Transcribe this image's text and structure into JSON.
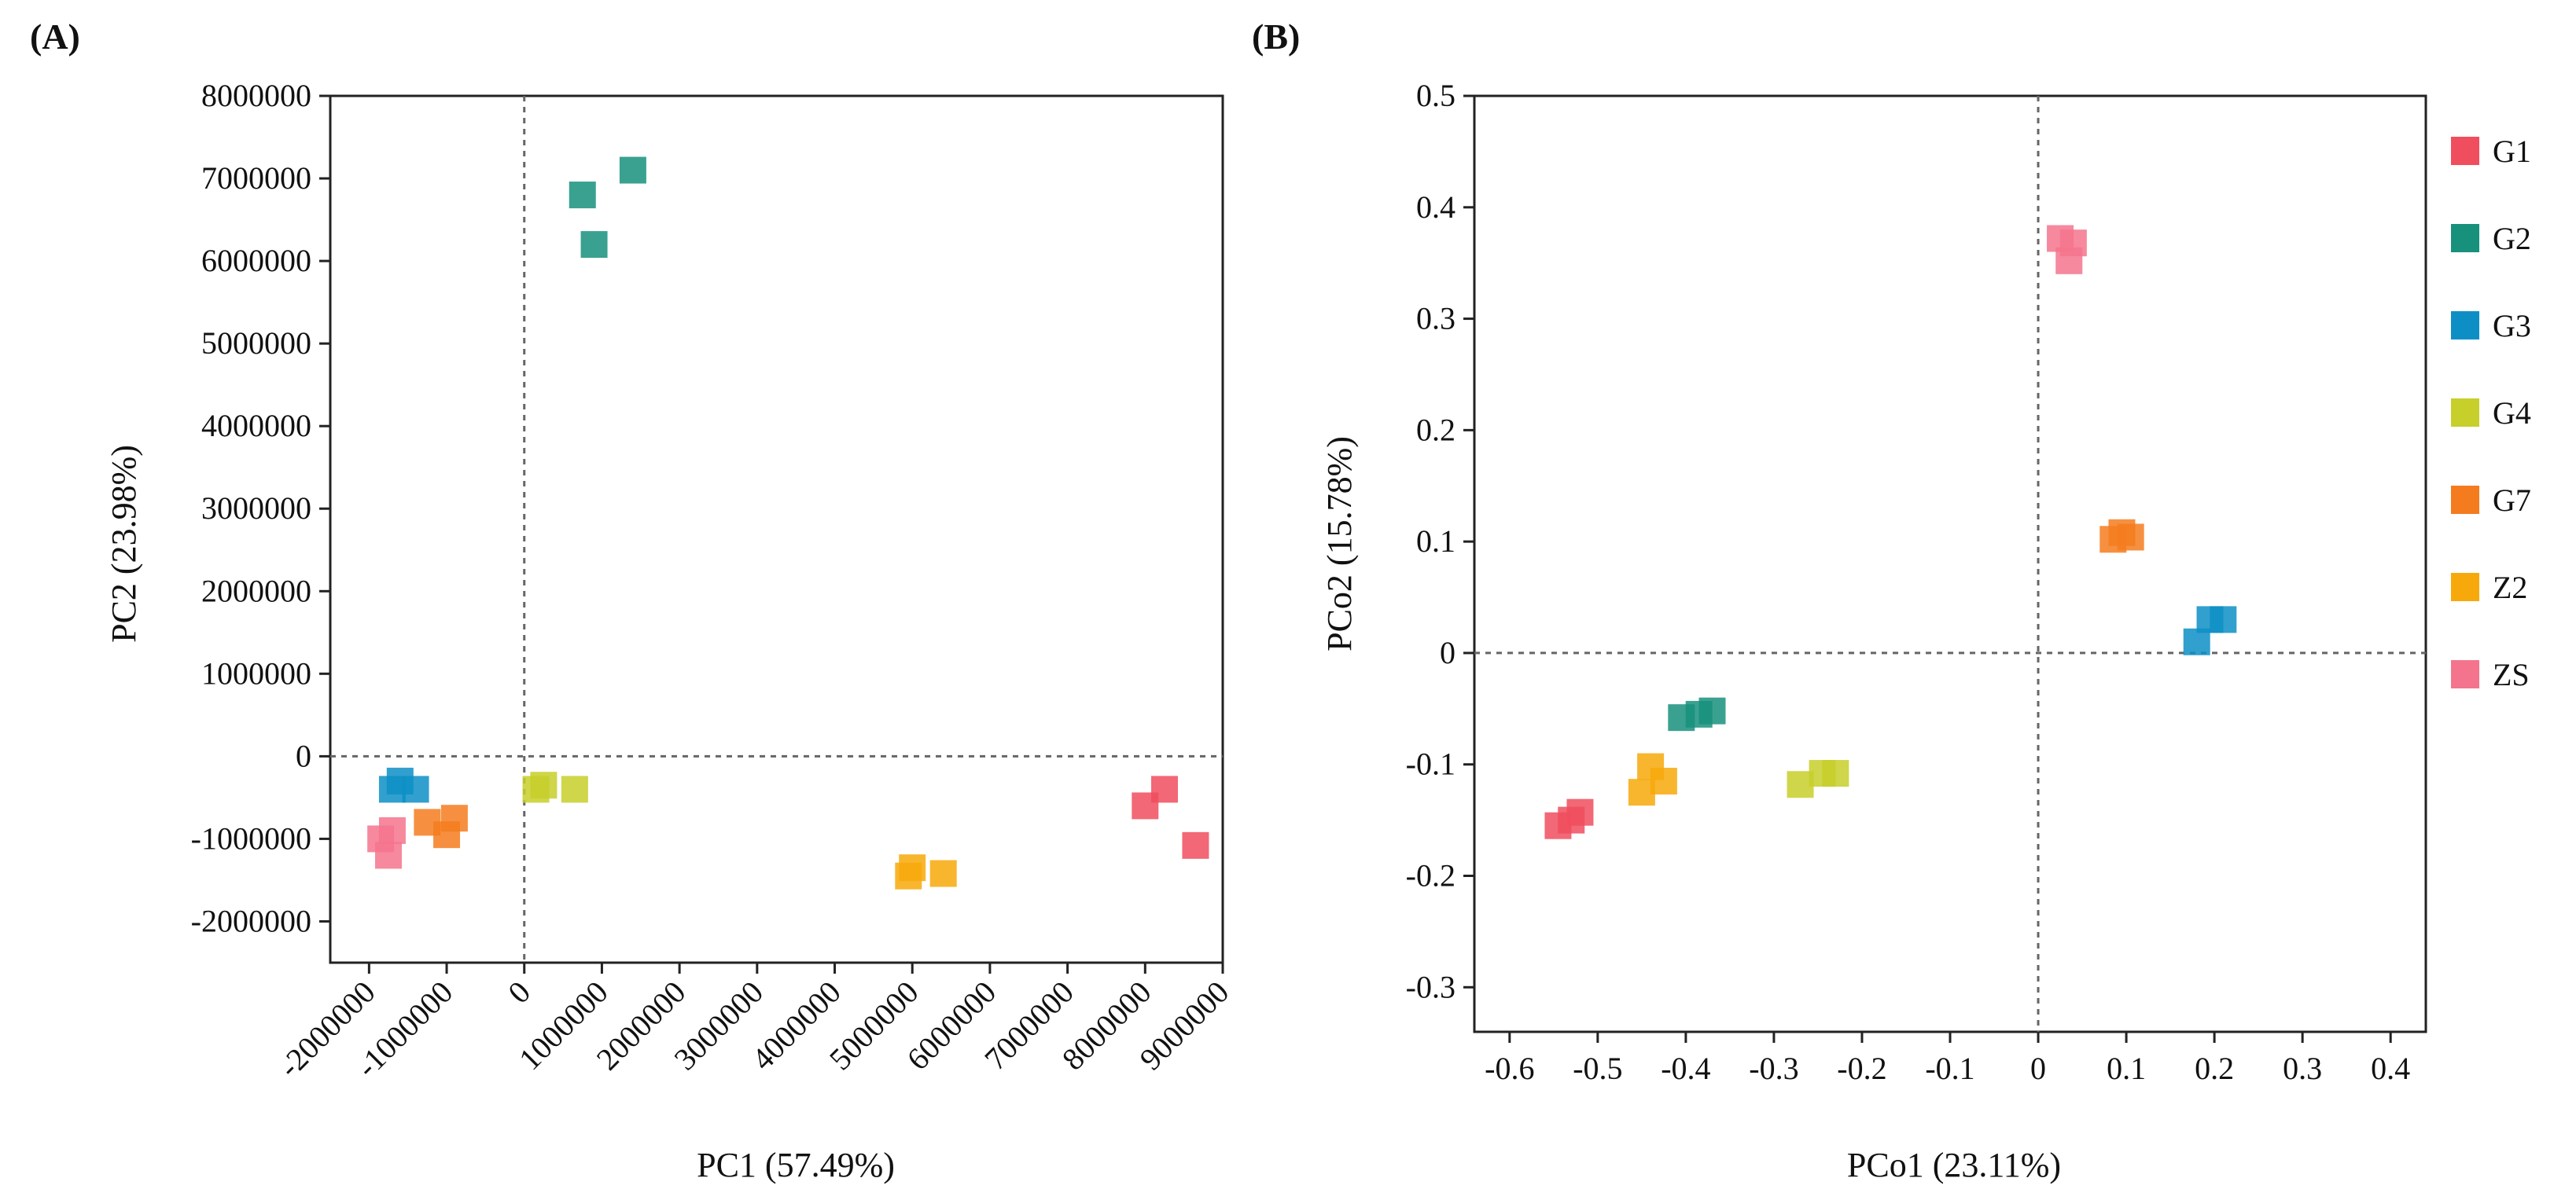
{
  "charts": [
    {
      "panel_label": "(A)",
      "title": "",
      "xlabel": "PC1 (57.49%)",
      "ylabel": "PC2 (23.98%)"
    },
    {
      "panel_label": "(B)",
      "title": "",
      "xlabel": "PCo1 (23.11%)",
      "ylabel": "PCo2 (15.78%)"
    }
  ],
  "legend": {
    "entries": [
      {
        "label": "G1",
        "color": "#f04e5e"
      },
      {
        "label": "G2",
        "color": "#17917c"
      },
      {
        "label": "G3",
        "color": "#0d8fc6"
      },
      {
        "label": "G4",
        "color": "#c7cf2a"
      },
      {
        "label": "G7",
        "color": "#f47c1e"
      },
      {
        "label": "Z2",
        "color": "#f7a90b"
      },
      {
        "label": "ZS",
        "color": "#f4748d"
      }
    ]
  },
  "chart_data": [
    {
      "type": "scatter",
      "title": "",
      "panel": "(A)",
      "xlabel": "PC1 (57.49%)",
      "ylabel": "PC2 (23.98%)",
      "xlim": [
        -2500000,
        9000000
      ],
      "ylim": [
        -2500000,
        8000000
      ],
      "xticks": [
        -2000000,
        -1000000,
        0,
        1000000,
        2000000,
        3000000,
        4000000,
        5000000,
        6000000,
        7000000,
        8000000,
        9000000
      ],
      "xtick_labels": [
        "-2000000",
        "-1000000",
        "0",
        "1000000",
        "2000000",
        "3000000",
        "4000000",
        "5000000",
        "6000000",
        "7000000",
        "8000000",
        "9000000"
      ],
      "yticks": [
        -2000000,
        -1000000,
        0,
        1000000,
        2000000,
        3000000,
        4000000,
        5000000,
        6000000,
        7000000,
        8000000
      ],
      "ytick_labels": [
        "-2000000",
        "-1000000",
        "0",
        "1000000",
        "2000000",
        "3000000",
        "4000000",
        "5000000",
        "6000000",
        "7000000",
        "8000000"
      ],
      "reference_lines": {
        "x": 0,
        "y": 0
      },
      "series": [
        {
          "name": "G1",
          "color": "#f04e5e",
          "x": [
            8000000,
            8250000,
            8650000
          ],
          "y": [
            -600000,
            -400000,
            -1080000
          ]
        },
        {
          "name": "G2",
          "color": "#17917c",
          "x": [
            750000,
            900000,
            1400000
          ],
          "y": [
            6800000,
            6200000,
            7100000
          ]
        },
        {
          "name": "G3",
          "color": "#0d8fc6",
          "x": [
            -1700000,
            -1600000,
            -1400000
          ],
          "y": [
            -400000,
            -300000,
            -400000
          ]
        },
        {
          "name": "G4",
          "color": "#c7cf2a",
          "x": [
            150000,
            250000,
            650000
          ],
          "y": [
            -400000,
            -350000,
            -400000
          ]
        },
        {
          "name": "G7",
          "color": "#f47c1e",
          "x": [
            -1250000,
            -1000000,
            -900000
          ],
          "y": [
            -800000,
            -950000,
            -750000
          ]
        },
        {
          "name": "Z2",
          "color": "#f7a90b",
          "x": [
            4950000,
            5000000,
            5400000
          ],
          "y": [
            -1450000,
            -1350000,
            -1420000
          ]
        },
        {
          "name": "ZS",
          "color": "#f4748d",
          "x": [
            -1850000,
            -1750000,
            -1700000
          ],
          "y": [
            -1000000,
            -1200000,
            -900000
          ]
        }
      ]
    },
    {
      "type": "scatter",
      "title": "",
      "panel": "(B)",
      "xlabel": "PCo1 (23.11%)",
      "ylabel": "PCo2 (15.78%)",
      "xlim": [
        -0.64,
        0.44
      ],
      "ylim": [
        -0.34,
        0.5
      ],
      "xticks": [
        -0.6,
        -0.5,
        -0.4,
        -0.3,
        -0.2,
        -0.1,
        0,
        0.1,
        0.2,
        0.3,
        0.4
      ],
      "xtick_labels": [
        "-0.6",
        "-0.5",
        "-0.4",
        "-0.3",
        "-0.2",
        "-0.1",
        "0",
        "0.1",
        "0.2",
        "0.3",
        "0.4"
      ],
      "yticks": [
        -0.3,
        -0.2,
        -0.1,
        0,
        0.1,
        0.2,
        0.3,
        0.4,
        0.5
      ],
      "ytick_labels": [
        "-0.3",
        "-0.2",
        "-0.1",
        "0",
        "0.1",
        "0.2",
        "0.3",
        "0.4",
        "0.5"
      ],
      "reference_lines": {
        "x": 0,
        "y": 0
      },
      "series": [
        {
          "name": "G1",
          "color": "#f04e5e",
          "x": [
            -0.545,
            -0.53,
            -0.52
          ],
          "y": [
            -0.155,
            -0.15,
            -0.143
          ]
        },
        {
          "name": "G2",
          "color": "#17917c",
          "x": [
            -0.405,
            -0.385,
            -0.37
          ],
          "y": [
            -0.058,
            -0.055,
            -0.052
          ]
        },
        {
          "name": "G3",
          "color": "#0d8fc6",
          "x": [
            0.18,
            0.195,
            0.21
          ],
          "y": [
            0.01,
            0.03,
            0.03
          ]
        },
        {
          "name": "G4",
          "color": "#c7cf2a",
          "x": [
            -0.27,
            -0.245,
            -0.23
          ],
          "y": [
            -0.118,
            -0.108,
            -0.108
          ]
        },
        {
          "name": "G7",
          "color": "#f47c1e",
          "x": [
            0.085,
            0.095,
            0.105
          ],
          "y": [
            0.102,
            0.108,
            0.104
          ]
        },
        {
          "name": "Z2",
          "color": "#f7a90b",
          "x": [
            -0.45,
            -0.44,
            -0.425
          ],
          "y": [
            -0.125,
            -0.102,
            -0.115
          ]
        },
        {
          "name": "ZS",
          "color": "#f4748d",
          "x": [
            0.025,
            0.035,
            0.04
          ],
          "y": [
            0.372,
            0.352,
            0.368
          ]
        }
      ]
    }
  ]
}
